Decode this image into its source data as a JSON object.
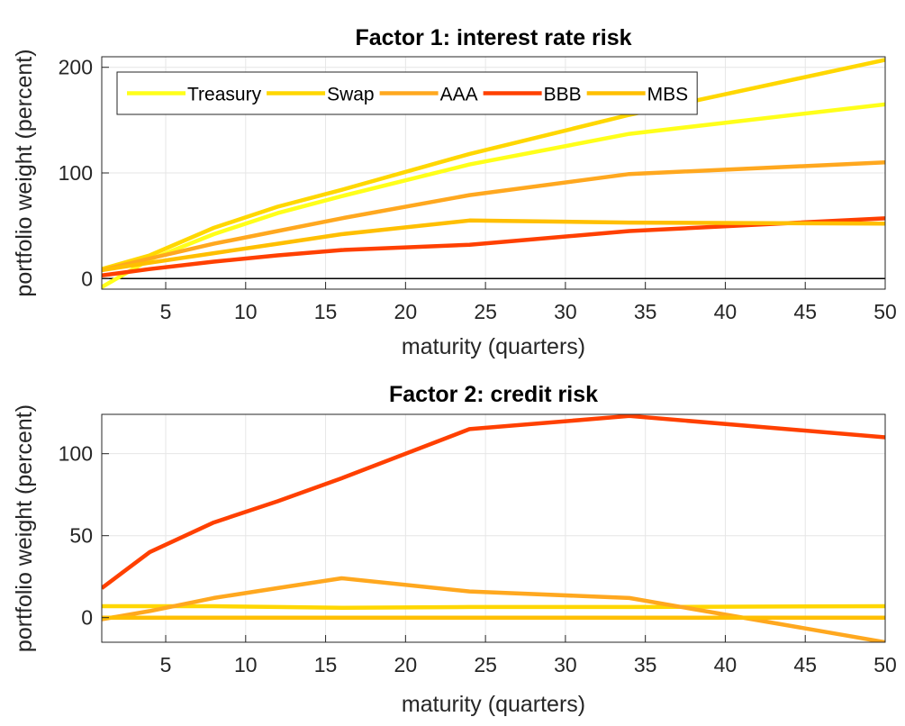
{
  "chart_data": [
    {
      "type": "line",
      "title": "Factor 1: interest rate risk",
      "xlabel": "maturity (quarters)",
      "ylabel": "portfolio weight (percent)",
      "xlim": [
        1,
        50
      ],
      "ylim": [
        -10,
        210
      ],
      "xticks": [
        5,
        10,
        15,
        20,
        25,
        30,
        35,
        40,
        45,
        50
      ],
      "yticks": [
        0,
        100,
        200
      ],
      "grid": true,
      "legend": {
        "placement": "top-left",
        "orientation": "horizontal"
      },
      "x": [
        1,
        4,
        8,
        12,
        16,
        24,
        34,
        50
      ],
      "series": [
        {
          "name": "Treasury",
          "color": "#ffff1a",
          "values": [
            -8,
            18,
            42,
            62,
            78,
            108,
            137,
            165
          ]
        },
        {
          "name": "Swap",
          "color": "#ffd700",
          "values": [
            9,
            22,
            48,
            68,
            84,
            118,
            155,
            207
          ]
        },
        {
          "name": "AAA",
          "color": "#ffa81f",
          "values": [
            8,
            19,
            33,
            45,
            57,
            79,
            99,
            110
          ]
        },
        {
          "name": "BBB",
          "color": "#ff4000",
          "values": [
            3,
            9,
            16,
            22,
            27,
            32,
            45,
            57
          ]
        },
        {
          "name": "MBS",
          "color": "#ffbf00",
          "values": [
            8,
            15,
            24,
            33,
            42,
            55,
            53,
            52
          ]
        }
      ]
    },
    {
      "type": "line",
      "title": "Factor 2: credit risk",
      "xlabel": "maturity (quarters)",
      "ylabel": "portfolio weight (percent)",
      "xlim": [
        1,
        50
      ],
      "ylim": [
        -15,
        124
      ],
      "xticks": [
        5,
        10,
        15,
        20,
        25,
        30,
        35,
        40,
        45,
        50
      ],
      "yticks": [
        0,
        50,
        100
      ],
      "grid": true,
      "x": [
        1,
        4,
        8,
        12,
        16,
        24,
        34,
        50
      ],
      "series": [
        {
          "name": "Treasury",
          "color": "#ffff1a",
          "values": [
            0,
            0,
            0,
            0,
            0,
            0,
            0,
            0
          ]
        },
        {
          "name": "Swap",
          "color": "#ffd700",
          "values": [
            7,
            7,
            7,
            6.5,
            6,
            6.5,
            6.5,
            7
          ]
        },
        {
          "name": "AAA",
          "color": "#ffa81f",
          "values": [
            -1,
            4,
            12,
            18,
            24,
            16,
            12,
            -15
          ]
        },
        {
          "name": "BBB",
          "color": "#ff4000",
          "values": [
            18,
            40,
            58,
            71,
            85,
            115,
            123,
            110
          ]
        },
        {
          "name": "MBS",
          "color": "#ffbf00",
          "values": [
            0,
            0,
            0,
            0,
            0,
            0,
            0,
            0
          ]
        }
      ]
    }
  ]
}
